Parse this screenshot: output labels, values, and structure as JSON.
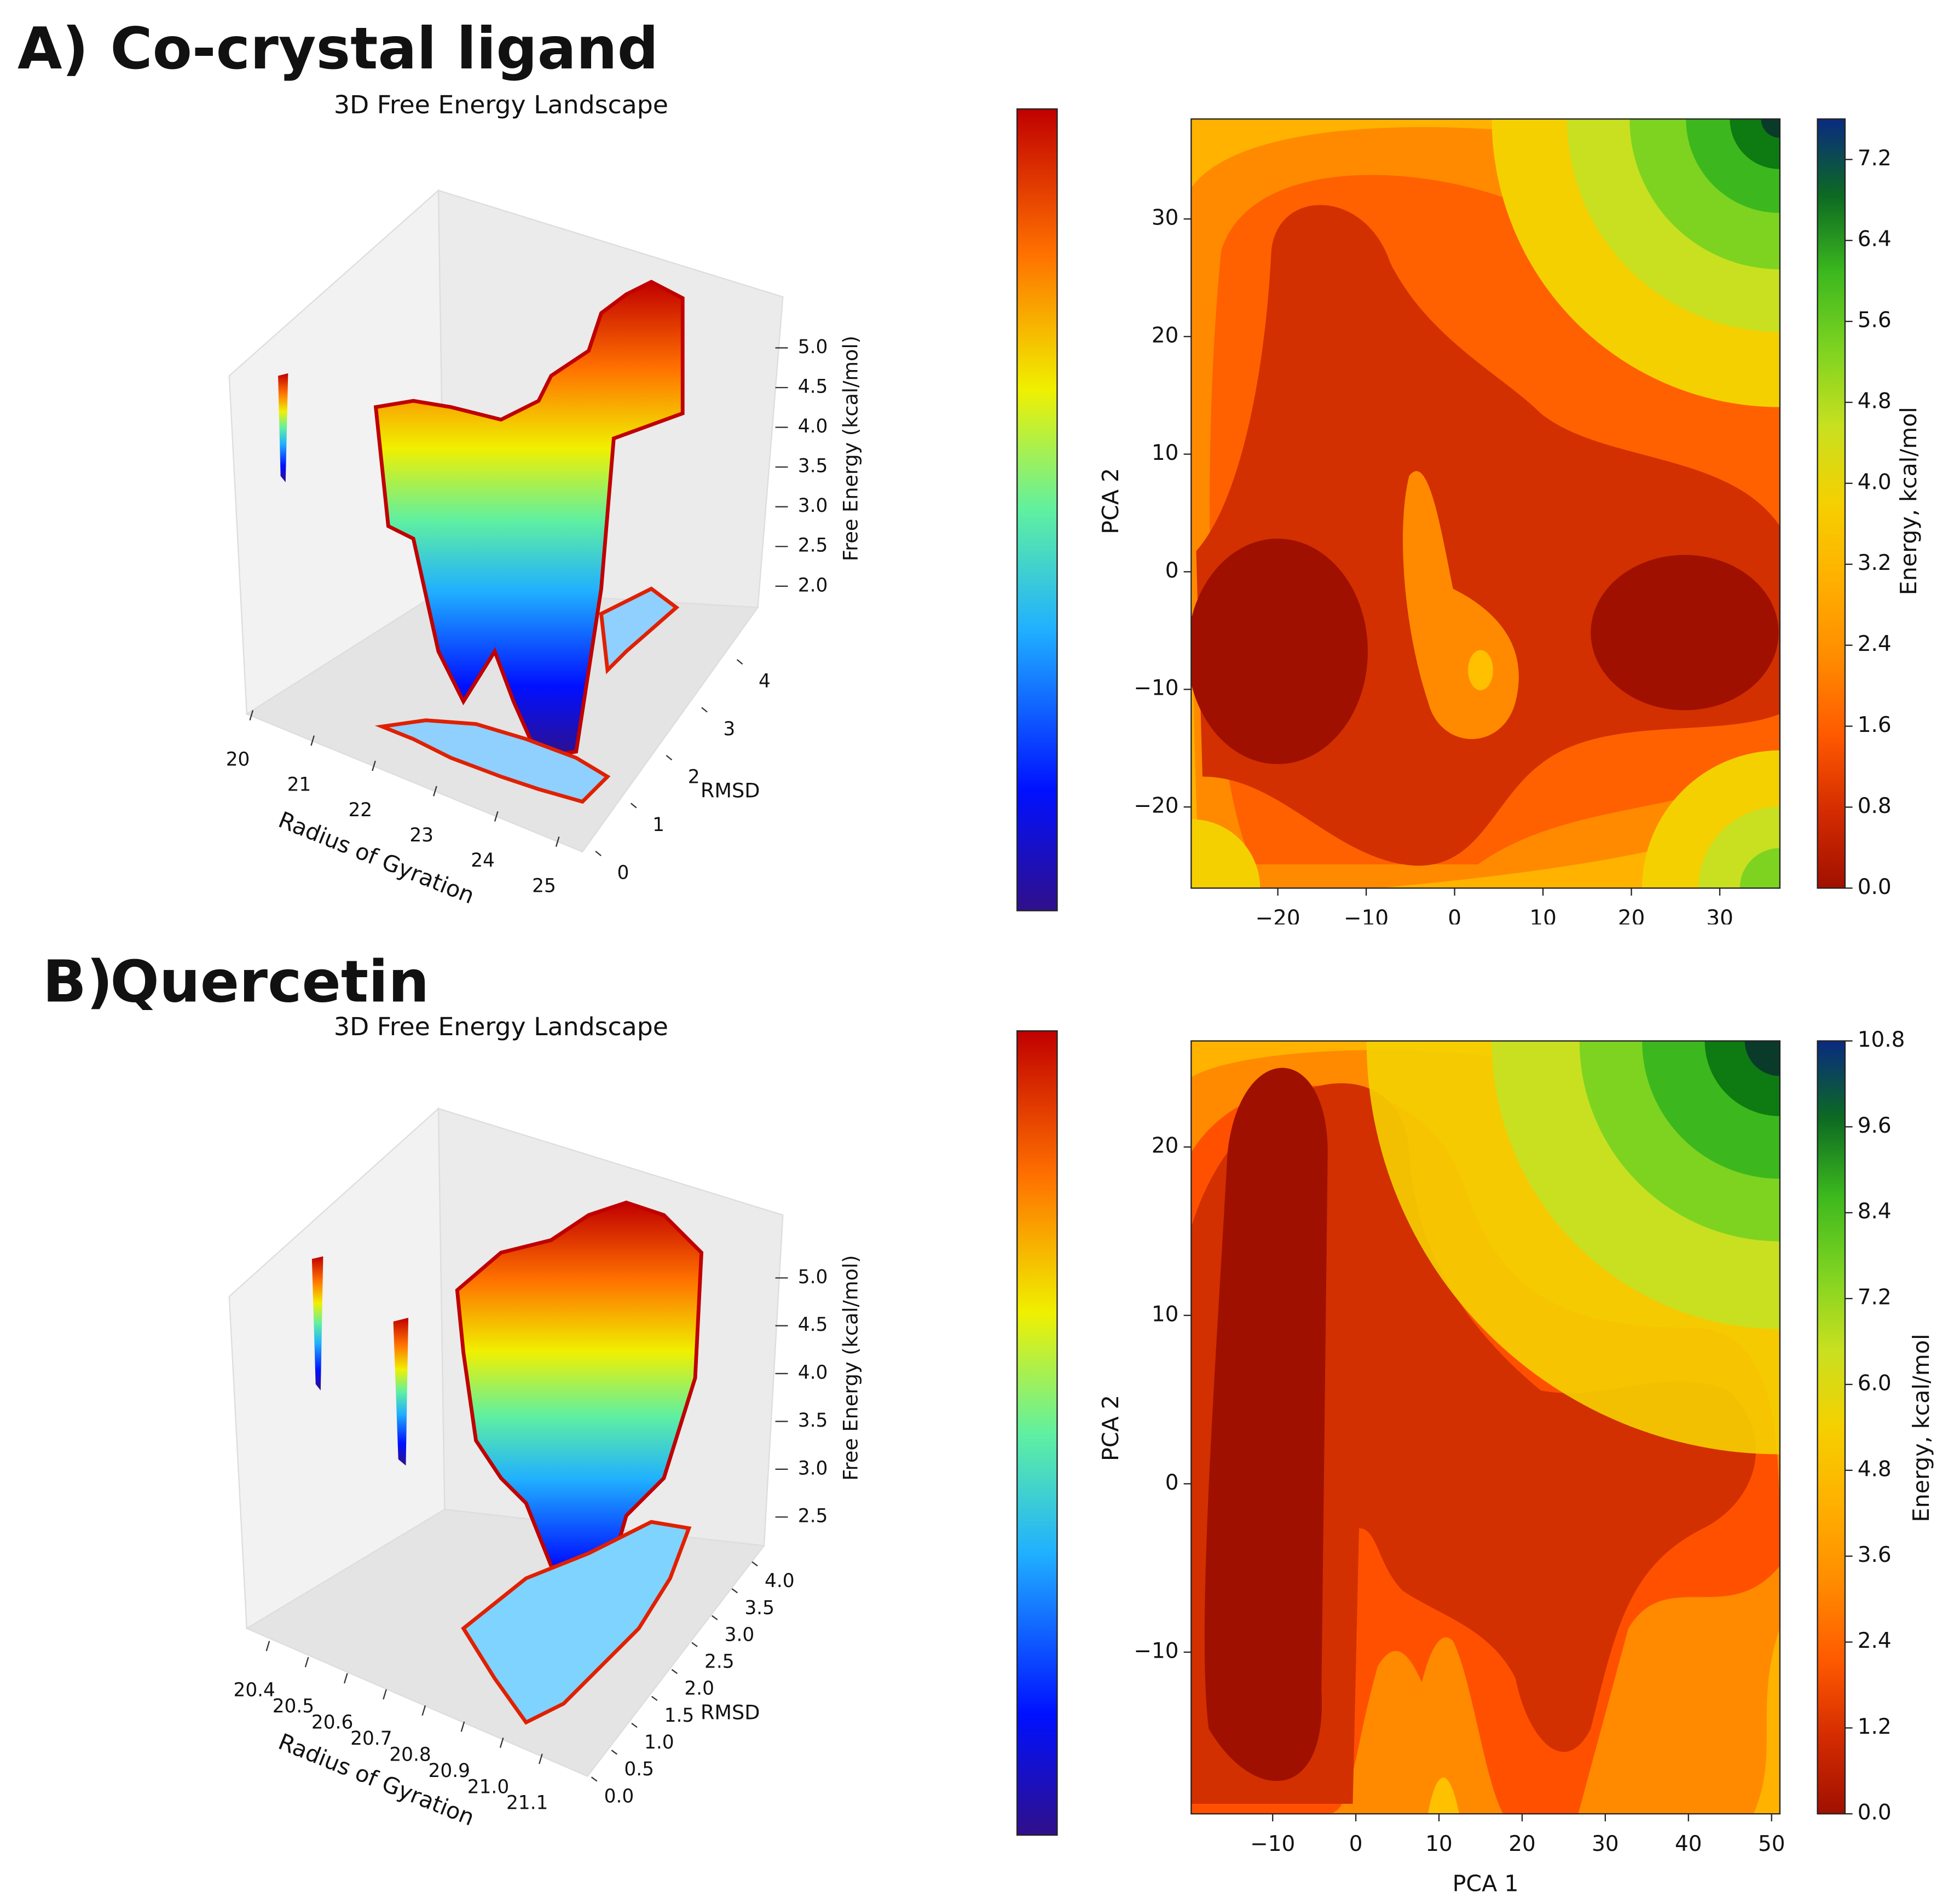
{
  "panels": [
    {
      "label": "A)",
      "title": "Co-crystal ligand"
    },
    {
      "label": "B)",
      "title": "Quercetin"
    }
  ],
  "chart_data": [
    {
      "type": "surface3d",
      "title": "3D Free Energy Landscape",
      "xlabel": "Radius of Gyration",
      "ylabel": "RMSD",
      "zlabel": "Free Energy (kcal/mol)",
      "xlim": [
        19.9,
        25.3
      ],
      "xticks": [
        20,
        21,
        22,
        23,
        24,
        25
      ],
      "ylim": [
        -0.3,
        4.8
      ],
      "yticks": [
        0,
        1,
        2,
        3,
        4
      ],
      "zlim": [
        1.7,
        5.5
      ],
      "zticks": [
        {
          "value": 2,
          "label": "2.0"
        },
        2.5,
        {
          "value": 3,
          "label": "3.0"
        },
        3.5,
        {
          "value": 4,
          "label": "4.0"
        },
        4.5,
        {
          "value": 5,
          "label": "5.0"
        }
      ]
    },
    {
      "type": "contour",
      "ylabel": "PCA 2",
      "colorbar_label": "Energy, kcal/mol",
      "xlim": [
        -29.8,
        36.8
      ],
      "xticks": [
        {
          "value": -20,
          "label": "−20"
        },
        {
          "value": -10,
          "label": "−10"
        },
        0,
        10,
        20,
        30
      ],
      "ylim": [
        -26.9,
        38.5
      ],
      "yticks": [
        {
          "value": -20,
          "label": "−20"
        },
        {
          "value": -10,
          "label": "−10"
        },
        0,
        10,
        20,
        30
      ],
      "clim": [
        0,
        7.6
      ],
      "cticks": [
        {
          "value": 0,
          "label": "0.0"
        },
        0.8,
        1.6,
        2.4,
        3.2,
        {
          "value": 4,
          "label": "4.0"
        },
        4.8,
        5.6,
        6.4,
        7.2
      ]
    },
    {
      "type": "surface3d",
      "title": "3D Free Energy Landscape",
      "xlabel": "Radius of Gyration",
      "ylabel": "RMSD",
      "zlabel": "Free Energy (kcal/mol)",
      "xlim": [
        20.35,
        21.2
      ],
      "xticks": [
        20.4,
        20.5,
        20.6,
        20.7,
        20.8,
        20.9,
        {
          "value": 21,
          "label": "21.0"
        },
        21.1
      ],
      "ylim": [
        -0.1,
        4.3
      ],
      "yticks": [
        {
          "value": 0,
          "label": "0.0"
        },
        0.5,
        {
          "value": 1,
          "label": "1.0"
        },
        1.5,
        {
          "value": 2,
          "label": "2.0"
        },
        2.5,
        {
          "value": 3,
          "label": "3.0"
        },
        3.5,
        {
          "value": 4,
          "label": "4.0"
        }
      ],
      "zlim": [
        2.2,
        5.5
      ],
      "zticks": [
        2.5,
        {
          "value": 3,
          "label": "3.0"
        },
        3.5,
        {
          "value": 4,
          "label": "4.0"
        },
        4.5,
        {
          "value": 5,
          "label": "5.0"
        }
      ]
    },
    {
      "type": "contour",
      "xlabel": "PCA 1",
      "ylabel": "PCA 2",
      "colorbar_label": "Energy, kcal/mol",
      "xlim": [
        -19.8,
        51
      ],
      "xticks": [
        {
          "value": -10,
          "label": "−10"
        },
        0,
        10,
        20,
        30,
        40,
        50
      ],
      "ylim": [
        -19.6,
        26.3
      ],
      "yticks": [
        {
          "value": -10,
          "label": "−10"
        },
        0,
        10,
        20
      ],
      "clim": [
        0,
        10.8
      ],
      "cticks": [
        {
          "value": 0,
          "label": "0.0"
        },
        1.2,
        2.4,
        3.6,
        4.8,
        {
          "value": 6,
          "label": "6.0"
        },
        7.2,
        8.4,
        9.6,
        10.8
      ]
    }
  ]
}
